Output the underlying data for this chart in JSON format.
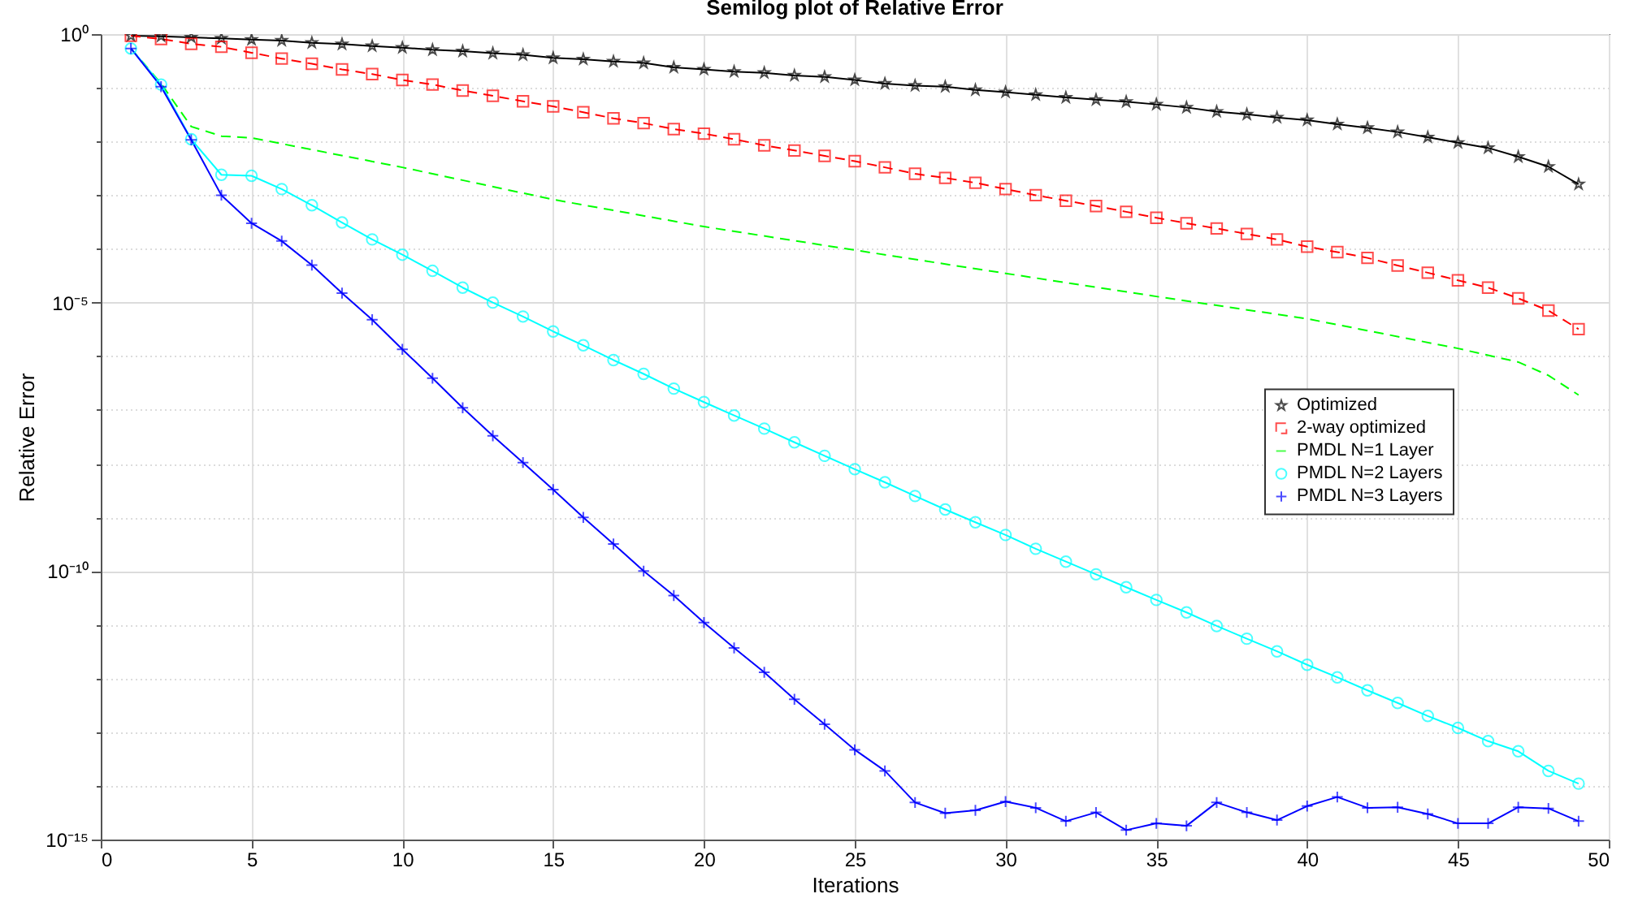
{
  "chart_data": {
    "type": "line",
    "title": "Semilog plot of Relative Error",
    "xlabel": "Iterations",
    "ylabel": "Relative Error",
    "x": [
      1,
      2,
      3,
      4,
      5,
      6,
      7,
      8,
      9,
      10,
      11,
      12,
      13,
      14,
      15,
      16,
      17,
      18,
      19,
      20,
      21,
      22,
      23,
      24,
      25,
      26,
      27,
      28,
      29,
      30,
      31,
      32,
      33,
      34,
      35,
      36,
      37,
      38,
      39,
      40,
      41,
      42,
      43,
      44,
      45,
      46,
      47,
      48,
      49
    ],
    "series": [
      {
        "name": "Optimized",
        "color": "#000000",
        "marker": "star",
        "line_style": "solid",
        "values": [
          0.93,
          0.91,
          0.87,
          0.83,
          0.79,
          0.76,
          0.69,
          0.65,
          0.6,
          0.56,
          0.51,
          0.48,
          0.44,
          0.41,
          0.36,
          0.34,
          0.31,
          0.29,
          0.24,
          0.22,
          0.2,
          0.19,
          0.17,
          0.16,
          0.14,
          0.12,
          0.11,
          0.105,
          0.091,
          0.083,
          0.074,
          0.066,
          0.06,
          0.055,
          0.049,
          0.043,
          0.036,
          0.032,
          0.028,
          0.025,
          0.021,
          0.018,
          0.015,
          0.012,
          0.0095,
          0.0076,
          0.0052,
          0.0034,
          0.0016
        ]
      },
      {
        "name": "2-way optimized",
        "color": "#ff0000",
        "marker": "square",
        "line_style": "dashed",
        "values": [
          0.93,
          0.81,
          0.66,
          0.58,
          0.45,
          0.35,
          0.28,
          0.22,
          0.18,
          0.14,
          0.115,
          0.089,
          0.071,
          0.056,
          0.045,
          0.035,
          0.027,
          0.022,
          0.017,
          0.014,
          0.011,
          0.0085,
          0.0068,
          0.0054,
          0.0043,
          0.0033,
          0.0025,
          0.0021,
          0.0017,
          0.0013,
          0.001,
          0.00079,
          0.00063,
          0.00049,
          0.00038,
          0.0003,
          0.00024,
          0.00019,
          0.00015,
          0.00011,
          8.7e-05,
          6.8e-05,
          4.9e-05,
          3.6e-05,
          2.6e-05,
          1.9e-05,
          1.2e-05,
          7.1e-06,
          3.2e-06
        ]
      },
      {
        "name": "PMDL N=1 Layer",
        "color": "#00ff00",
        "marker": "none",
        "line_style": "dashed",
        "x": [
          1,
          2,
          3,
          4,
          5,
          10,
          15,
          20,
          25,
          30,
          35,
          40,
          45,
          47,
          48,
          49
        ],
        "values": [
          0.54,
          0.12,
          0.019,
          0.0126,
          0.0117,
          0.0033,
          0.00083,
          0.00026,
          9.5e-05,
          3.5e-05,
          1.3e-05,
          5e-06,
          1.4e-06,
          7.8e-07,
          4.4e-07,
          1.9e-07
        ]
      },
      {
        "name": "PMDL N=2 Layers",
        "color": "#00ffff",
        "marker": "circle",
        "line_style": "solid",
        "values": [
          0.54,
          0.115,
          0.011,
          0.0024,
          0.0023,
          0.0013,
          0.00065,
          0.00031,
          0.00015,
          7.8e-05,
          3.9e-05,
          1.9e-05,
          1e-05,
          5.5e-06,
          2.9e-06,
          1.6e-06,
          8.5e-07,
          4.7e-07,
          2.5e-07,
          1.4e-07,
          7.9e-08,
          4.5e-08,
          2.5e-08,
          1.4e-08,
          7.9e-09,
          4.5e-09,
          2.5e-09,
          1.4e-09,
          8.1e-10,
          4.7e-10,
          2.6e-10,
          1.5e-10,
          8.7e-11,
          5e-11,
          2.9e-11,
          1.7e-11,
          9.5e-12,
          5.5e-12,
          3.2e-12,
          1.8e-12,
          1.05e-12,
          6e-13,
          3.5e-13,
          2e-13,
          1.2e-13,
          6.8e-14,
          4.4e-14,
          1.9e-14,
          1.1e-14
        ]
      },
      {
        "name": "PMDL N=3 Layers",
        "color": "#0000ff",
        "marker": "cross",
        "line_style": "solid",
        "values": [
          0.54,
          0.105,
          0.0107,
          0.001,
          0.0003,
          0.00014,
          5e-05,
          1.5e-05,
          4.8e-06,
          1.35e-06,
          3.9e-07,
          1.1e-07,
          3.3e-08,
          1.05e-08,
          3.3e-09,
          1e-09,
          3.2e-10,
          1e-10,
          3.5e-11,
          1.1e-11,
          3.7e-12,
          1.3e-12,
          4.1e-13,
          1.4e-13,
          4.7e-14,
          1.9e-14,
          4.9e-15,
          3.1e-15,
          3.5e-15,
          5.1e-15,
          3.9e-15,
          2.2e-15,
          3.2e-15,
          1.5e-15,
          2e-15,
          1.8e-15,
          4.9e-15,
          3.2e-15,
          2.3e-15,
          4.2e-15,
          6.2e-15,
          3.9e-15,
          4e-15,
          3e-15,
          2e-15,
          2e-15,
          4e-15,
          3.8e-15,
          2.2e-15
        ]
      }
    ],
    "xlim": [
      0,
      50
    ],
    "xticks": [
      0,
      5,
      10,
      15,
      20,
      25,
      30,
      35,
      40,
      45,
      50
    ],
    "log": true,
    "ylim": [
      1e-15,
      1
    ],
    "yticks": [
      {
        "value": 1e-15,
        "label": "10⁻¹⁵"
      },
      {
        "value": 1e-14,
        "label": null
      },
      {
        "value": 1e-13,
        "label": null
      },
      {
        "value": 1e-12,
        "label": null
      },
      {
        "value": 1e-11,
        "label": null
      },
      {
        "value": 1e-10,
        "label": "10⁻¹⁰"
      },
      {
        "value": 1e-09,
        "label": null
      },
      {
        "value": 1e-08,
        "label": null
      },
      {
        "value": 1e-07,
        "label": null
      },
      {
        "value": 1e-06,
        "label": null
      },
      {
        "value": 1e-05,
        "label": "10⁻⁵"
      },
      {
        "value": 0.0001,
        "label": null
      },
      {
        "value": 0.001,
        "label": null
      },
      {
        "value": 0.01,
        "label": null
      },
      {
        "value": 0.1,
        "label": null
      },
      {
        "value": 1,
        "label": "10⁰"
      }
    ],
    "grid": true,
    "legend": "right"
  }
}
